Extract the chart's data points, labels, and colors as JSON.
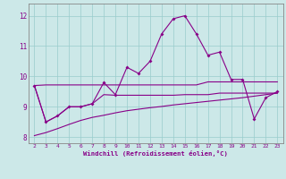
{
  "x": [
    2,
    3,
    4,
    5,
    6,
    7,
    8,
    9,
    10,
    11,
    12,
    13,
    14,
    15,
    16,
    17,
    18,
    19,
    20,
    21,
    22,
    23
  ],
  "line_zigzag": [
    9.7,
    8.5,
    8.7,
    9.0,
    9.0,
    9.1,
    9.8,
    9.4,
    10.3,
    10.1,
    10.5,
    11.4,
    11.9,
    12.0,
    11.4,
    10.7,
    10.8,
    9.9,
    9.9,
    8.6,
    9.3,
    9.5
  ],
  "line_flat": [
    9.7,
    9.72,
    9.72,
    9.72,
    9.72,
    9.72,
    9.72,
    9.72,
    9.72,
    9.72,
    9.72,
    9.72,
    9.72,
    9.72,
    9.72,
    9.82,
    9.82,
    9.82,
    9.82,
    9.82,
    9.82,
    9.82
  ],
  "line_mid": [
    9.7,
    8.5,
    8.7,
    9.0,
    9.0,
    9.1,
    9.4,
    9.38,
    9.38,
    9.38,
    9.38,
    9.38,
    9.38,
    9.4,
    9.4,
    9.4,
    9.45,
    9.45,
    9.45,
    9.45,
    9.45,
    9.45
  ],
  "line_rising": [
    8.05,
    8.15,
    8.28,
    8.42,
    8.55,
    8.65,
    8.72,
    8.8,
    8.87,
    8.92,
    8.97,
    9.01,
    9.06,
    9.1,
    9.14,
    9.18,
    9.22,
    9.26,
    9.3,
    9.35,
    9.4,
    9.45
  ],
  "color": "#880088",
  "bg_color": "#cce8e8",
  "grid_color": "#99cccc",
  "xlabel": "Windchill (Refroidissement éolien,°C)",
  "ylim": [
    7.8,
    12.4
  ],
  "xlim": [
    1.5,
    23.5
  ],
  "yticks": [
    8,
    9,
    10,
    11,
    12
  ],
  "xticks": [
    2,
    3,
    4,
    5,
    6,
    7,
    8,
    9,
    10,
    11,
    12,
    13,
    14,
    15,
    16,
    17,
    18,
    19,
    20,
    21,
    22,
    23
  ]
}
